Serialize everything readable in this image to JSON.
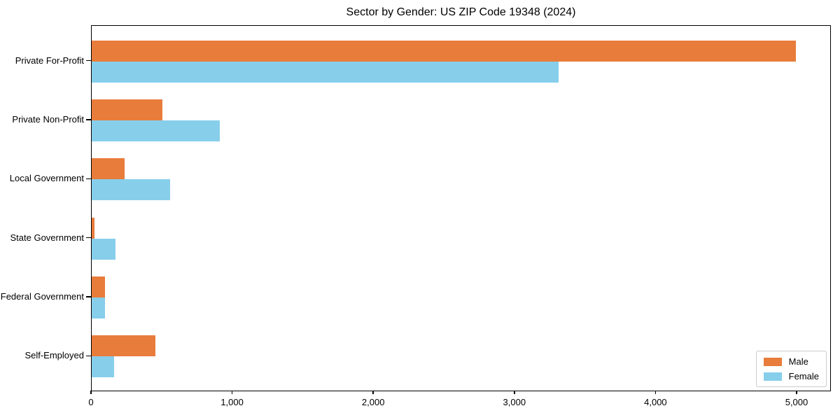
{
  "chart_data": {
    "type": "bar",
    "orientation": "horizontal",
    "title": "Sector by Gender: US ZIP Code 19348 (2024)",
    "categories": [
      "Private For-Profit",
      "Private Non-Profit",
      "Local Government",
      "State Government",
      "Federal Government",
      "Self-Employed"
    ],
    "series": [
      {
        "name": "Male",
        "color": "#E87C3B",
        "values": [
          4990,
          500,
          232,
          20,
          93,
          450
        ]
      },
      {
        "name": "Female",
        "color": "#87CEEB",
        "values": [
          3310,
          910,
          555,
          170,
          95,
          158
        ]
      }
    ],
    "xlabel": "",
    "ylabel": "",
    "xlim": [
      0,
      5243
    ],
    "xticks": [
      0,
      1000,
      2000,
      3000,
      4000,
      5000
    ],
    "xtick_labels": [
      "0",
      "1,000",
      "2,000",
      "3,000",
      "4,000",
      "5,000"
    ],
    "grid": false,
    "legend": {
      "position": "lower-right",
      "entries": [
        "Male",
        "Female"
      ]
    }
  },
  "frame": {
    "background": "#ffffff",
    "spine_color": "#000000",
    "legend_border_color": "#cccccc"
  }
}
